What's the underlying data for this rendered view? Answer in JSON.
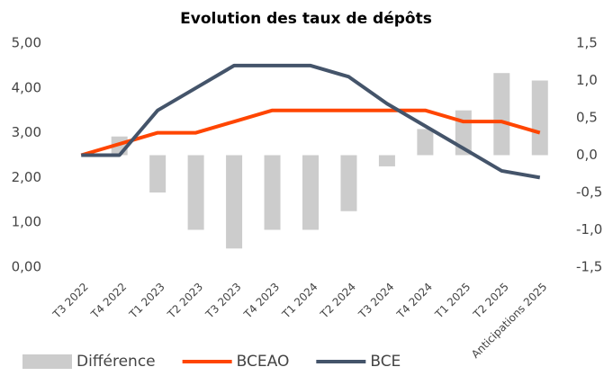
{
  "chart_data": {
    "type": "bar-line",
    "title": "Evolution des taux de dépôts",
    "categories": [
      "T3 2022",
      "T4 2022",
      "T1 2023",
      "T2 2023",
      "T3 2023",
      "T4 2023",
      "T1 2024",
      "T2 2024",
      "T3 2024",
      "T4 2024",
      "T1 2025",
      "T2 2025",
      "Anticipations 2025"
    ],
    "series": [
      {
        "name": "Différence",
        "color": "#cccccc",
        "kind": "bar",
        "axis": "y2",
        "values": [
          0,
          0.25,
          -0.5,
          -1.0,
          -1.25,
          -1.0,
          -1.0,
          -0.75,
          -0.15,
          0.35,
          0.6,
          1.1,
          1.0
        ]
      },
      {
        "name": "BCEAO",
        "color": "#ff4500",
        "kind": "line",
        "values": [
          2.5,
          2.75,
          3.0,
          3.0,
          3.25,
          3.5,
          3.5,
          3.5,
          3.5,
          3.5,
          3.25,
          3.25,
          3.0
        ]
      },
      {
        "name": "BCE",
        "color": "#44546a",
        "kind": "line",
        "values": [
          2.5,
          2.5,
          3.5,
          4.0,
          4.5,
          4.5,
          4.5,
          4.25,
          3.65,
          3.15,
          2.65,
          2.15,
          2.0
        ]
      }
    ],
    "ylim": [
      0,
      5
    ],
    "yticks": [
      {
        "value": 0,
        "label": "0,00"
      },
      {
        "value": 1,
        "label": "1,00"
      },
      {
        "value": 2,
        "label": "2,00"
      },
      {
        "value": 3,
        "label": "3,00"
      },
      {
        "value": 4,
        "label": "4,00"
      },
      {
        "value": 5,
        "label": "5,00"
      }
    ],
    "y2lim": [
      -1.5,
      1.5
    ],
    "y2ticks": [
      {
        "value": -1.5,
        "label": "-1,5"
      },
      {
        "value": -1,
        "label": "-1,0"
      },
      {
        "value": -0.5,
        "label": "-0,5"
      },
      {
        "value": 0,
        "label": "0,0"
      },
      {
        "value": 0.5,
        "label": "0,5"
      },
      {
        "value": 1,
        "label": "1,0"
      },
      {
        "value": 1.5,
        "label": "1,5"
      }
    ],
    "legend": "bottom"
  }
}
